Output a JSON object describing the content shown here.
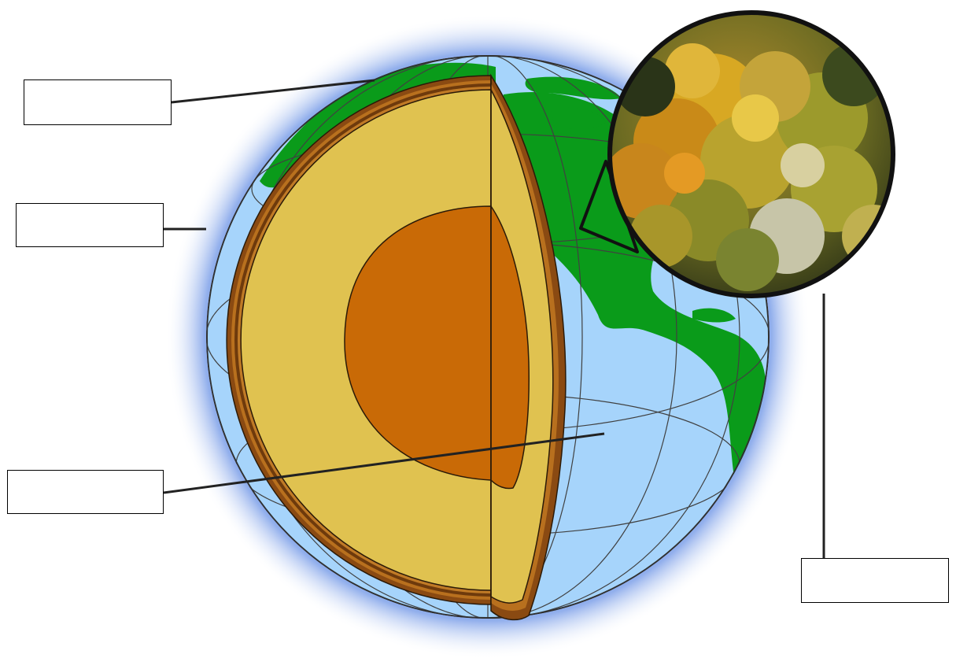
{
  "diagram": {
    "colors": {
      "background": "#ffffff",
      "glow": "#3f6fd8",
      "ocean": "#a6d4fb",
      "land": "#0a9b1a",
      "mantle": "#e0c250",
      "core": "#c96a06",
      "crust_layers": "#8a4a12",
      "outline": "#2b1a08",
      "grid_lines": "#404040"
    },
    "labels": [
      {
        "id": "label-1",
        "text": ""
      },
      {
        "id": "label-2",
        "text": ""
      },
      {
        "id": "label-3",
        "text": ""
      },
      {
        "id": "label-4",
        "text": ""
      }
    ],
    "inset": {
      "content": "autumn-forest-canopy-photo"
    }
  }
}
